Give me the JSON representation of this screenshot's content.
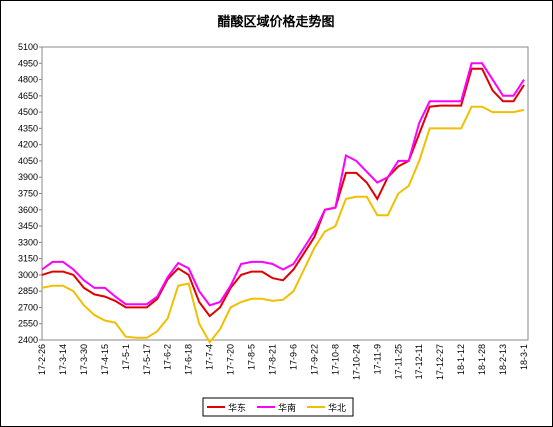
{
  "chart_data": {
    "type": "line",
    "title": "醋酸区域价格走势图",
    "categories": [
      "17-2-26",
      null,
      "17-3-14",
      null,
      "17-3-30",
      null,
      "17-4-15",
      null,
      "17-5-1",
      null,
      "17-5-17",
      null,
      "17-6-2",
      null,
      "17-6-18",
      null,
      "17-7-4",
      null,
      "17-7-20",
      null,
      "17-8-5",
      null,
      "17-8-21",
      null,
      "17-9-6",
      null,
      "17-9-22",
      null,
      "17-10-8",
      null,
      "17-10-24",
      null,
      "17-11-9",
      null,
      "17-11-25",
      null,
      "17-12-11",
      null,
      "17-12-27",
      null,
      "18-1-12",
      null,
      "18-1-28",
      null,
      "18-2-13",
      null,
      "18-3-1"
    ],
    "series": [
      {
        "name": "华东",
        "color": "#e00000",
        "values": [
          3000,
          3030,
          3030,
          3000,
          2880,
          2820,
          2800,
          2760,
          2700,
          2700,
          2700,
          2780,
          2960,
          3060,
          3000,
          2750,
          2620,
          2700,
          2880,
          3000,
          3030,
          3030,
          2970,
          2950,
          3050,
          3200,
          3350,
          3600,
          3620,
          3940,
          3940,
          3850,
          3700,
          3900,
          4000,
          4050,
          4300,
          4550,
          4560,
          4560,
          4560,
          4900,
          4900,
          4700,
          4600,
          4600,
          4750
        ]
      },
      {
        "name": "华南",
        "color": "#ff00ff",
        "values": [
          3050,
          3120,
          3120,
          3050,
          2950,
          2880,
          2880,
          2800,
          2730,
          2730,
          2730,
          2800,
          2980,
          3110,
          3060,
          2850,
          2720,
          2750,
          2900,
          3100,
          3120,
          3120,
          3100,
          3050,
          3100,
          3250,
          3400,
          3600,
          3620,
          4100,
          4050,
          3950,
          3850,
          3900,
          4050,
          4050,
          4400,
          4600,
          4600,
          4600,
          4600,
          4950,
          4950,
          4800,
          4650,
          4650,
          4800
        ]
      },
      {
        "name": "华北",
        "color": "#f0c000",
        "values": [
          2880,
          2900,
          2900,
          2850,
          2720,
          2630,
          2580,
          2560,
          2430,
          2420,
          2420,
          2480,
          2600,
          2900,
          2920,
          2550,
          2380,
          2500,
          2700,
          2750,
          2780,
          2780,
          2760,
          2770,
          2850,
          3050,
          3250,
          3400,
          3450,
          3700,
          3720,
          3720,
          3550,
          3550,
          3750,
          3820,
          4050,
          4350,
          4350,
          4350,
          4350,
          4550,
          4550,
          4500,
          4500,
          4500,
          4520
        ]
      }
    ],
    "ylim": [
      2400,
      5100
    ],
    "yticks": [
      2400,
      2550,
      2700,
      2850,
      3000,
      3150,
      3300,
      3450,
      3600,
      3750,
      3900,
      4050,
      4200,
      4350,
      4500,
      4650,
      4800,
      4950,
      5100
    ],
    "grid": false,
    "legend": "bottom"
  }
}
